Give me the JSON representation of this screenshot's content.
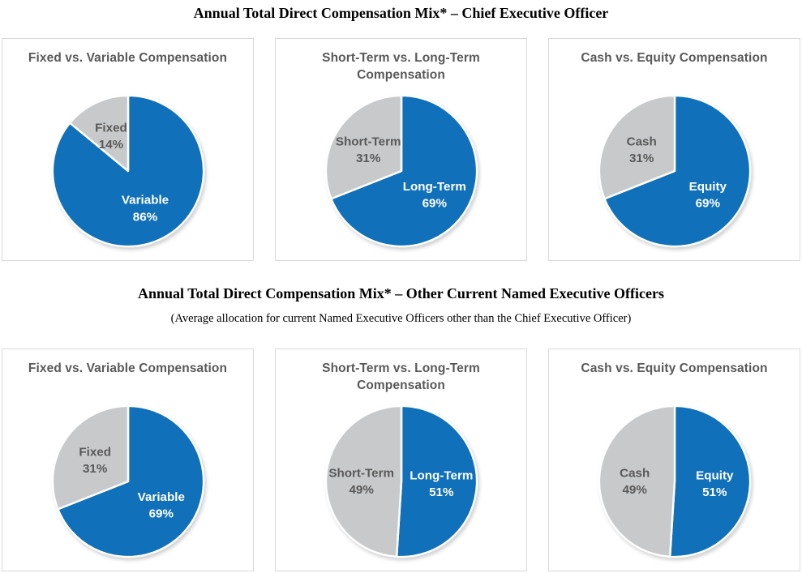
{
  "colors": {
    "pie_blue": "#1070BA",
    "pie_gray": "#C8C9CB",
    "panel_border": "#D9D9D9",
    "chart_title_text": "#595959",
    "gray_slice_label_text": "#595959",
    "blue_slice_label_text": "#FFFFFF",
    "heading_text": "#000000"
  },
  "sections": [
    {
      "title": "Annual Total Direct Compensation Mix* – Chief Executive Officer",
      "subtitle": null
    },
    {
      "title": "Annual Total Direct Compensation Mix* – Other Current Named Executive Officers",
      "subtitle": "(Average allocation for current Named Executive Officers other than the Chief Executive Officer)"
    }
  ],
  "chart_data": [
    {
      "type": "pie",
      "group": "Chief Executive Officer",
      "title": "Fixed vs. Variable Compensation",
      "unit": "%",
      "start_angle": "top",
      "direction": "clockwise",
      "slices": [
        {
          "label": "Variable",
          "value": 86,
          "color": "#1070BA",
          "text_color": "#FFFFFF"
        },
        {
          "label": "Fixed",
          "value": 14,
          "color": "#C8C9CB",
          "text_color": "#595959"
        }
      ]
    },
    {
      "type": "pie",
      "group": "Chief Executive Officer",
      "title": "Short-Term vs. Long-Term Compensation",
      "unit": "%",
      "start_angle": "top",
      "direction": "clockwise",
      "slices": [
        {
          "label": "Long-Term",
          "value": 69,
          "color": "#1070BA",
          "text_color": "#FFFFFF"
        },
        {
          "label": "Short-Term",
          "value": 31,
          "color": "#C8C9CB",
          "text_color": "#595959"
        }
      ]
    },
    {
      "type": "pie",
      "group": "Chief Executive Officer",
      "title": "Cash vs. Equity Compensation",
      "unit": "%",
      "start_angle": "top",
      "direction": "clockwise",
      "slices": [
        {
          "label": "Equity",
          "value": 69,
          "color": "#1070BA",
          "text_color": "#FFFFFF"
        },
        {
          "label": "Cash",
          "value": 31,
          "color": "#C8C9CB",
          "text_color": "#595959"
        }
      ]
    },
    {
      "type": "pie",
      "group": "Other Current Named Executive Officers",
      "title": "Fixed vs. Variable Compensation",
      "unit": "%",
      "start_angle": "top",
      "direction": "clockwise",
      "slices": [
        {
          "label": "Variable",
          "value": 69,
          "color": "#1070BA",
          "text_color": "#FFFFFF"
        },
        {
          "label": "Fixed",
          "value": 31,
          "color": "#C8C9CB",
          "text_color": "#595959"
        }
      ]
    },
    {
      "type": "pie",
      "group": "Other Current Named Executive Officers",
      "title": "Short-Term vs. Long-Term Compensation",
      "unit": "%",
      "start_angle": "top",
      "direction": "clockwise",
      "slices": [
        {
          "label": "Long-Term",
          "value": 51,
          "color": "#1070BA",
          "text_color": "#FFFFFF"
        },
        {
          "label": "Short-Term",
          "value": 49,
          "color": "#C8C9CB",
          "text_color": "#595959"
        }
      ]
    },
    {
      "type": "pie",
      "group": "Other Current Named Executive Officers",
      "title": "Cash vs. Equity Compensation",
      "unit": "%",
      "start_angle": "top",
      "direction": "clockwise",
      "slices": [
        {
          "label": "Equity",
          "value": 51,
          "color": "#1070BA",
          "text_color": "#FFFFFF"
        },
        {
          "label": "Cash",
          "value": 49,
          "color": "#C8C9CB",
          "text_color": "#595959"
        }
      ]
    }
  ]
}
